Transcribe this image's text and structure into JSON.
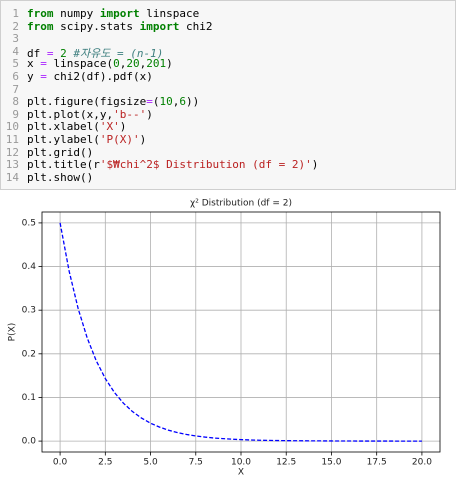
{
  "code": {
    "lines": [
      {
        "number": "1",
        "text": "from numpy import linspace"
      },
      {
        "number": "2",
        "text": "from scipy.stats import chi2"
      },
      {
        "number": "3"
      },
      {
        "number": "4",
        "text": "df = 2 #자유도 = (n-1)"
      },
      {
        "number": "5",
        "text": "x = linspace(0,20,201)"
      },
      {
        "number": "6",
        "text": "y = chi2(df).pdf(x)"
      },
      {
        "number": "7"
      },
      {
        "number": "8",
        "text": "plt.figure(figsize=(10,6))"
      },
      {
        "number": "9",
        "text": "plt.plot(x,y,'b--')"
      },
      {
        "number": "10",
        "text": "plt.xlabel('X')"
      },
      {
        "number": "11",
        "text": "plt.ylabel('P(X)')"
      },
      {
        "number": "12",
        "text": "plt.grid()"
      },
      {
        "number": "13",
        "text": "plt.title(r'$₩chi^2$ Distribution (df = 2)')"
      },
      {
        "number": "14",
        "text": "plt.show()"
      }
    ]
  },
  "chart_data": {
    "type": "line",
    "title": "χ² Distribution (df = 2)",
    "x_label": "X",
    "y_label": "P(X)",
    "x": [
      0,
      0.5,
      1,
      1.5,
      2,
      2.5,
      3,
      3.5,
      4,
      4.5,
      5,
      5.5,
      6,
      6.5,
      7,
      7.5,
      8,
      8.5,
      9,
      9.5,
      10,
      10.5,
      11,
      11.5,
      12,
      12.5,
      13,
      13.5,
      14,
      14.5,
      15,
      15.5,
      16,
      16.5,
      17,
      17.5,
      18,
      18.5,
      19,
      19.5,
      20
    ],
    "series": [
      {
        "color": "#0000ff",
        "line_style": "dashed",
        "values": [
          0.5,
          0.3894,
          0.3033,
          0.2362,
          0.1839,
          0.1433,
          0.1116,
          0.0869,
          0.0677,
          0.0527,
          0.041,
          0.032,
          0.0249,
          0.0194,
          0.0151,
          0.0118,
          0.0092,
          0.0071,
          0.0056,
          0.0043,
          0.0034,
          0.0026,
          0.002,
          0.0016,
          0.0012,
          0.001,
          0.0008,
          0.0006,
          0.0005,
          0.0004,
          0.0003,
          0.0002,
          0.0002,
          0.0001,
          0.0001,
          0.0001,
          0.0001,
          0,
          0,
          0,
          0
        ]
      }
    ],
    "xlim": [
      -1,
      21
    ],
    "ylim": [
      -0.025,
      0.525
    ],
    "xticks": [
      {
        "value": 0,
        "label": "0.0"
      },
      {
        "value": 2.5,
        "label": "2.5"
      },
      {
        "value": 5,
        "label": "5.0"
      },
      {
        "value": 7.5,
        "label": "7.5"
      },
      {
        "value": 10,
        "label": "10.0"
      },
      {
        "value": 12.5,
        "label": "12.5"
      },
      {
        "value": 15,
        "label": "15.0"
      },
      {
        "value": 17.5,
        "label": "17.5"
      },
      {
        "value": 20,
        "label": "20.0"
      }
    ],
    "yticks": [
      {
        "value": 0,
        "label": "0.0"
      },
      {
        "value": 0.1,
        "label": "0.1"
      },
      {
        "value": 0.2,
        "label": "0.2"
      },
      {
        "value": 0.3,
        "label": "0.3"
      },
      {
        "value": 0.4,
        "label": "0.4"
      },
      {
        "value": 0.5,
        "label": "0.5"
      }
    ],
    "grid": true
  }
}
